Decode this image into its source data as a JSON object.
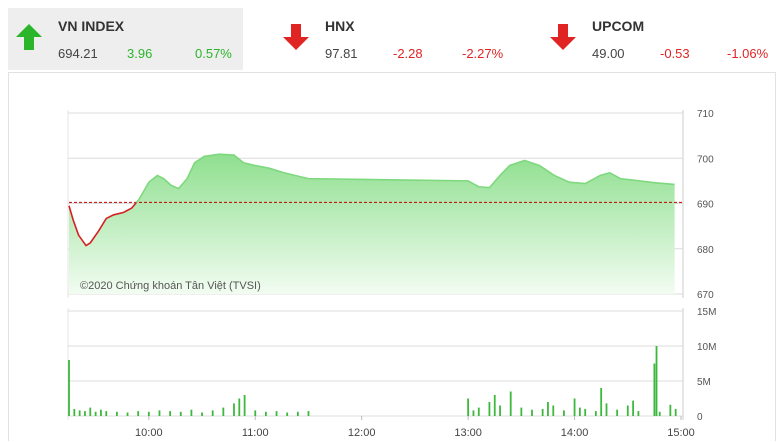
{
  "indices": [
    {
      "name": "VN INDEX",
      "value": "694.21",
      "change": "3.96",
      "change_pct": "0.57%",
      "direction": "up",
      "color": "#2bb52b"
    },
    {
      "name": "HNX",
      "value": "97.81",
      "change": "-2.28",
      "change_pct": "-2.27%",
      "direction": "down",
      "color": "#e02424"
    },
    {
      "name": "UPCOM",
      "value": "49.00",
      "change": "-0.53",
      "change_pct": "-1.06%",
      "direction": "down",
      "color": "#e02424"
    }
  ],
  "chart_data": [
    {
      "type": "line",
      "annotation": "©2020 Chứng khoán Tân Việt (TVSI)",
      "x": [
        9.25,
        9.29,
        9.34,
        9.41,
        9.45,
        9.53,
        9.6,
        9.67,
        9.76,
        9.84,
        9.91,
        10,
        10.08,
        10.14,
        10.21,
        10.28,
        10.36,
        10.43,
        10.52,
        10.66,
        10.8,
        10.89,
        11,
        11.13,
        11.27,
        11.41,
        11.5,
        13,
        13.1,
        13.2,
        13.3,
        13.39,
        13.53,
        13.67,
        13.81,
        13.95,
        14.1,
        14.24,
        14.33,
        14.43,
        14.61,
        14.75,
        14.94
      ],
      "series": [
        {
          "color": "#7ed87e",
          "below_color": "#d61f1f",
          "values": [
            689.5,
            686.3,
            683,
            680.7,
            681.3,
            684,
            686.7,
            687.5,
            688,
            689,
            691,
            694.7,
            696.2,
            695.5,
            694,
            693.3,
            695.5,
            699,
            700.4,
            700.9,
            700.7,
            699,
            698.4,
            697.8,
            696.8,
            696,
            695.5,
            695,
            693.7,
            693.5,
            696.2,
            698.4,
            699.5,
            698.4,
            696.2,
            694.7,
            694.4,
            696.2,
            696.8,
            695.5,
            695,
            694.6,
            694.21
          ]
        }
      ],
      "reference": 690.25,
      "reference_color": "#c00000",
      "xlim": [
        9.25,
        15
      ],
      "ylim": [
        670,
        710
      ],
      "yticks": [
        670,
        680,
        690,
        700,
        710
      ],
      "grid": true
    },
    {
      "type": "bar",
      "x": [
        9.25,
        9.3,
        9.35,
        9.4,
        9.45,
        9.5,
        9.55,
        9.6,
        9.7,
        9.8,
        9.9,
        10,
        10.1,
        10.2,
        10.3,
        10.4,
        10.5,
        10.6,
        10.7,
        10.8,
        10.85,
        10.9,
        11,
        11.1,
        11.2,
        11.3,
        11.4,
        11.5,
        13,
        13.05,
        13.1,
        13.2,
        13.25,
        13.3,
        13.4,
        13.5,
        13.6,
        13.7,
        13.75,
        13.8,
        13.9,
        14,
        14.05,
        14.1,
        14.2,
        14.25,
        14.3,
        14.4,
        14.5,
        14.55,
        14.6,
        14.75,
        14.77,
        14.8,
        14.9,
        14.95
      ],
      "values": [
        8000000,
        1000000,
        800000,
        700000,
        1200000,
        600000,
        900000,
        700000,
        600000,
        500000,
        700000,
        600000,
        800000,
        700000,
        600000,
        900000,
        500000,
        800000,
        1200000,
        1800000,
        2500000,
        3000000,
        800000,
        600000,
        700000,
        500000,
        600000,
        700000,
        2500000,
        800000,
        1200000,
        2000000,
        3000000,
        1500000,
        3500000,
        1200000,
        900000,
        1000000,
        2000000,
        1500000,
        800000,
        2500000,
        1200000,
        1000000,
        700000,
        4000000,
        1800000,
        900000,
        1500000,
        2200000,
        700000,
        7500000,
        10000000,
        600000,
        1600000,
        1000000
      ],
      "color": "#3cb83c",
      "xlim": [
        9.25,
        15
      ],
      "xticks": [
        {
          "value": 10,
          "label": "10:00"
        },
        {
          "value": 11,
          "label": "11:00"
        },
        {
          "value": 12,
          "label": "12:00"
        },
        {
          "value": 13,
          "label": "13:00"
        },
        {
          "value": 14,
          "label": "14:00"
        },
        {
          "value": 15,
          "label": "15:00"
        }
      ],
      "ylim": [
        0,
        15000000
      ],
      "yticks": [
        0,
        {
          "value": 5000000,
          "label": "5M"
        },
        {
          "value": 10000000,
          "label": "10M"
        },
        {
          "value": 15000000,
          "label": "15M"
        }
      ],
      "grid": true
    }
  ]
}
